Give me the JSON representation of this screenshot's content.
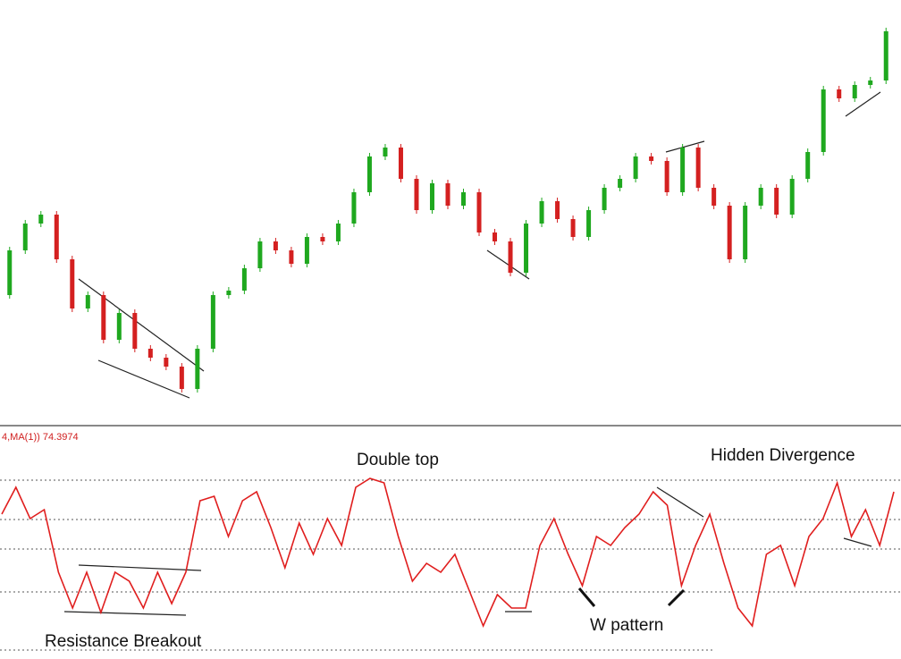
{
  "chart_data": [
    {
      "type": "candlestick",
      "values": [
        150,
        200,
        230,
        240,
        190,
        135,
        150,
        100,
        130,
        90,
        80,
        70,
        45,
        90,
        150,
        155,
        180,
        210,
        200,
        185,
        215,
        210,
        230,
        265,
        305,
        315,
        280,
        245,
        275,
        250,
        265,
        220,
        210,
        175,
        230,
        255,
        235,
        215,
        245,
        270,
        280,
        305,
        300,
        265,
        315,
        270,
        250,
        190,
        250,
        270,
        240,
        280,
        310,
        380,
        370,
        385,
        390,
        445
      ],
      "ylim": [
        0,
        480
      ],
      "up_color": "#1fa81f",
      "down_color": "#d42020"
    },
    {
      "type": "line",
      "label": "4,MA(1)) 74.3974",
      "values": [
        162,
        192,
        157,
        167,
        97,
        57,
        97,
        52,
        97,
        87,
        57,
        97,
        62,
        97,
        177,
        182,
        137,
        177,
        187,
        147,
        102,
        152,
        117,
        157,
        127,
        192,
        202,
        197,
        137,
        87,
        107,
        97,
        117,
        77,
        37,
        72,
        57,
        57,
        127,
        157,
        117,
        82,
        137,
        127,
        147,
        162,
        187,
        172,
        82,
        127,
        162,
        107,
        57,
        37,
        117,
        127,
        82,
        137,
        157,
        197,
        137,
        167,
        127,
        187
      ],
      "ylim": [
        0,
        257
      ],
      "color": "#e01e1e",
      "annotations": [
        "Double top",
        "Hidden Divergence",
        "Resistance Breakout",
        "W pattern"
      ]
    }
  ]
}
